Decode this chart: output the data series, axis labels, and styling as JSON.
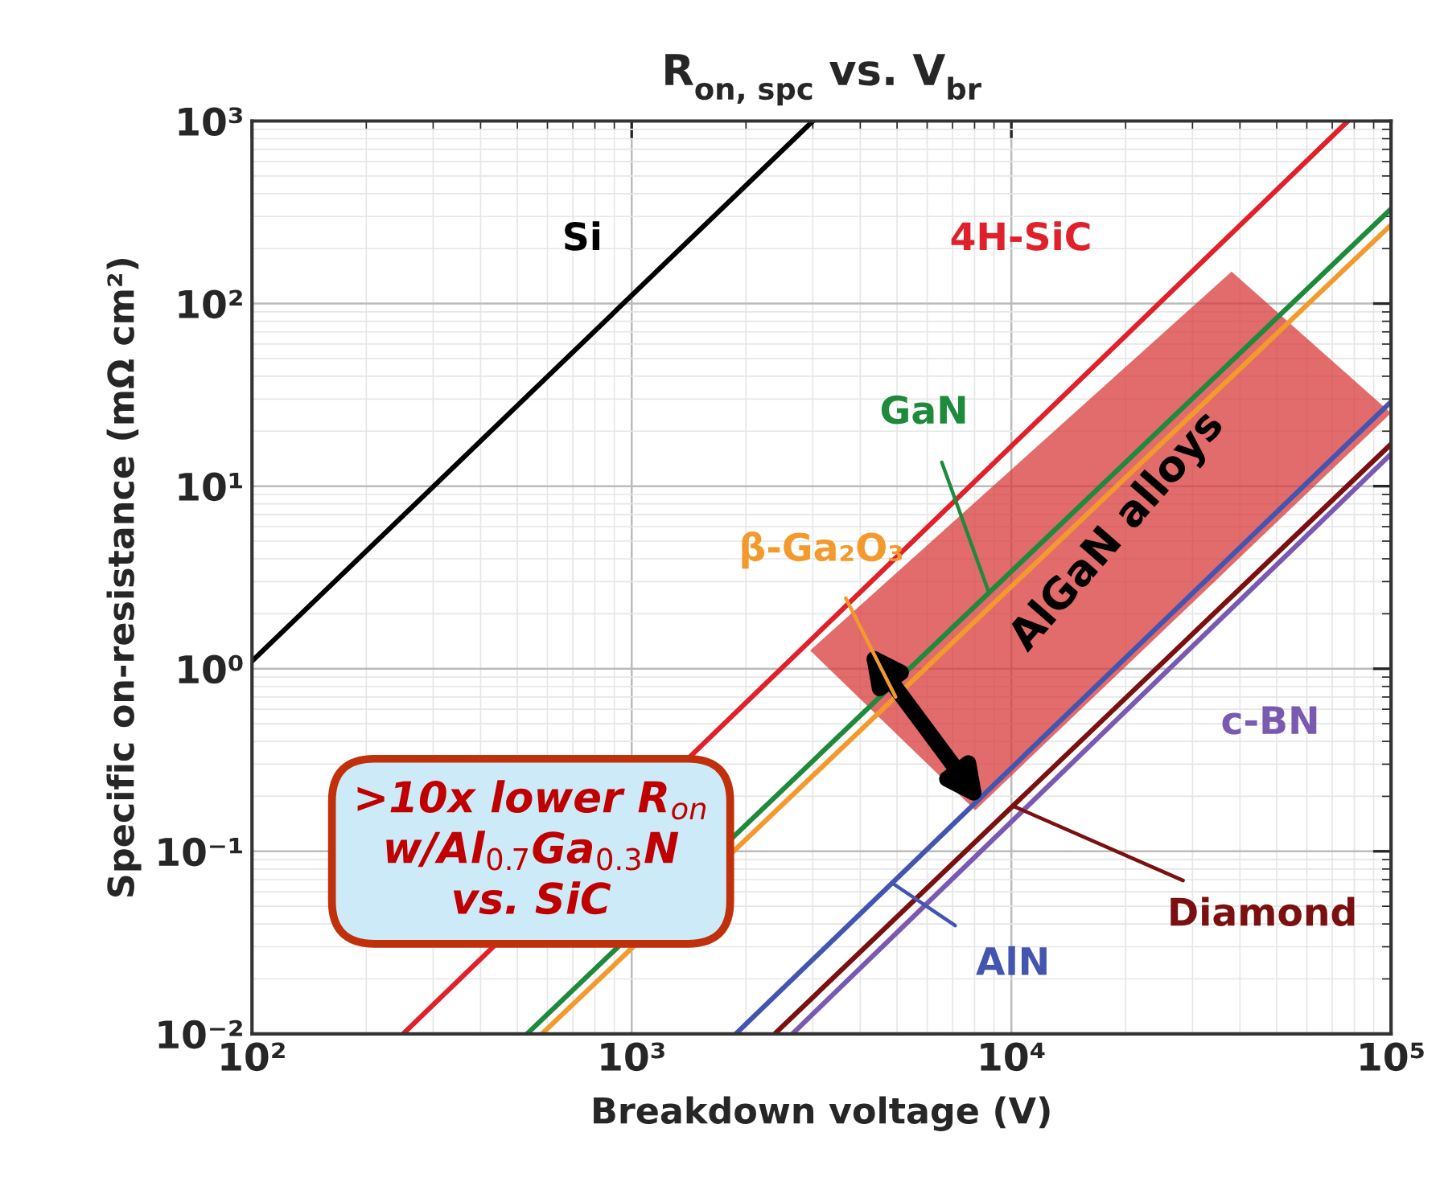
{
  "chart_data": {
    "type": "line",
    "title": "R$_{on, spc}$ vs. V$_{br}$",
    "xlabel": "Breakdown voltage (V)",
    "ylabel": "Specific on-resistance (mΩ cm²)",
    "log": "xy",
    "grid": true,
    "xlim": [
      100,
      100000
    ],
    "ylim": [
      0.01,
      1000
    ],
    "xticks": [
      {
        "value": 100,
        "label": "10²"
      },
      {
        "value": 1000,
        "label": "10³"
      },
      {
        "value": 10000,
        "label": "10⁴"
      },
      {
        "value": 100000,
        "label": "10⁵"
      }
    ],
    "yticks": [
      {
        "value": 0.01,
        "label": "10⁻²"
      },
      {
        "value": 0.1,
        "label": "10⁻¹"
      },
      {
        "value": 1,
        "label": "10⁰"
      },
      {
        "value": 10,
        "label": "10¹"
      },
      {
        "value": 100,
        "label": "10²"
      },
      {
        "value": 1000,
        "label": "10³"
      }
    ],
    "series": [
      {
        "name": "Si",
        "color": "#000000",
        "x": [
          100,
          3000
        ],
        "values": [
          1.1,
          1000
        ]
      },
      {
        "name": "4H-SiC",
        "color": "#e0202a",
        "x": [
          250,
          77000
        ],
        "values": [
          0.01,
          1000
        ]
      },
      {
        "name": "GaN",
        "color": "#1f8a3c",
        "x": [
          530,
          100000
        ],
        "values": [
          0.01,
          330
        ]
      },
      {
        "name": "β-Ga₂O₃",
        "color": "#f39a2e",
        "x": [
          580,
          100000
        ],
        "values": [
          0.01,
          270
        ]
      },
      {
        "name": "AlN",
        "color": "#4455b0",
        "x": [
          1880,
          100000
        ],
        "values": [
          0.01,
          29
        ]
      },
      {
        "name": "Diamond",
        "color": "#7a1010",
        "x": [
          2380,
          100000
        ],
        "values": [
          0.01,
          17
        ]
      },
      {
        "name": "c-BN",
        "color": "#7a5ab0",
        "x": [
          2650,
          100000
        ],
        "values": [
          0.01,
          15
        ]
      }
    ],
    "annotations": [
      "AlGaN alloys",
      ">10x lower R$_{on}$\nw/Al$_{0.7}$Ga$_{0.3}$N\nvs. SiC"
    ]
  }
}
